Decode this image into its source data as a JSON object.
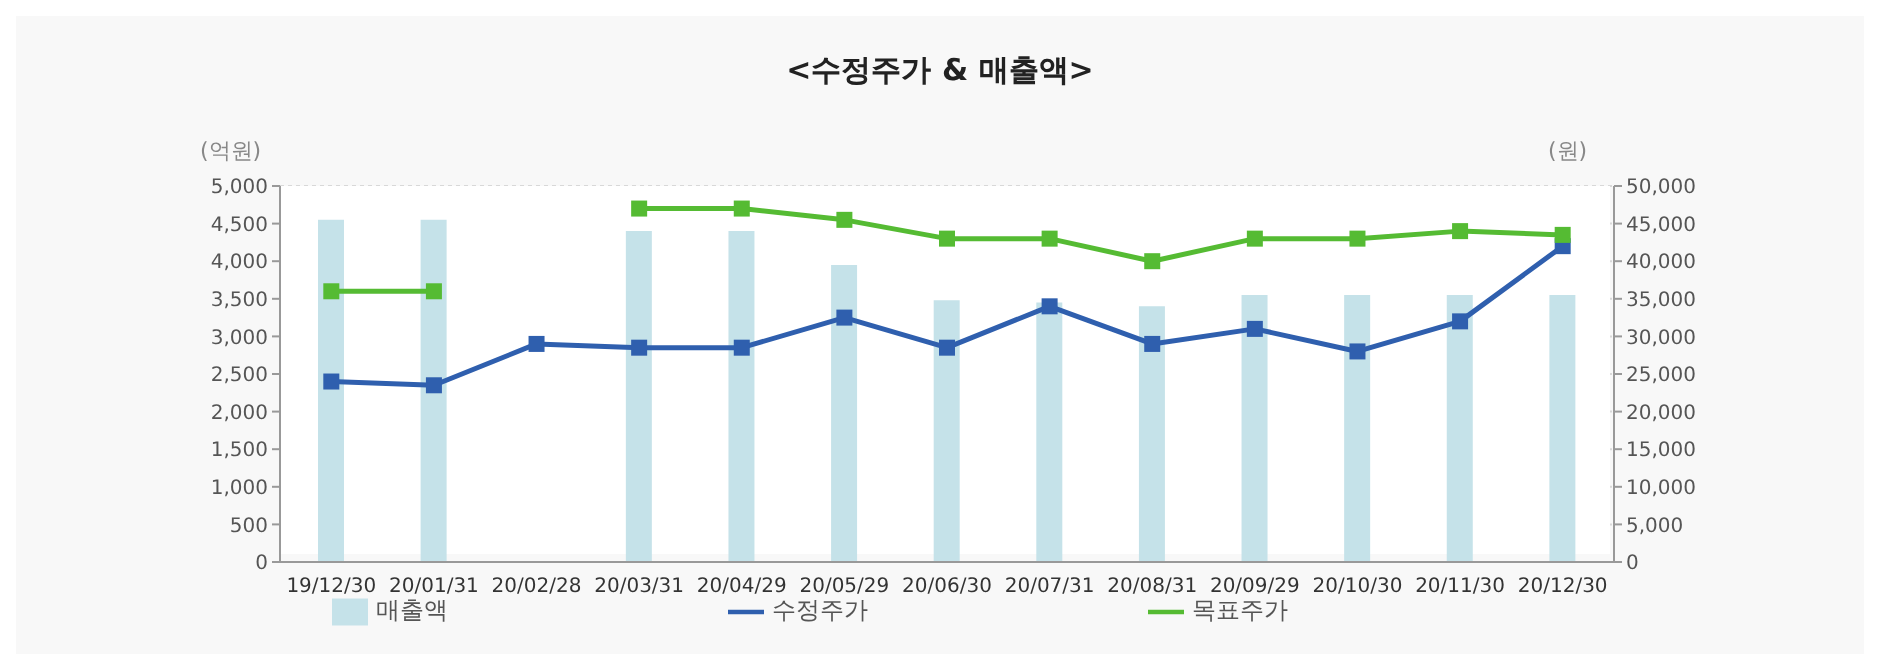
{
  "chart_data": {
    "type": "bar",
    "title": "<수정주가 & 매출액>",
    "ylabel": "(억원)",
    "y2label": "(원)",
    "categories": [
      "19/12/30",
      "20/01/31",
      "20/02/28",
      "20/03/31",
      "20/04/29",
      "20/05/29",
      "20/06/30",
      "20/07/31",
      "20/08/31",
      "20/09/29",
      "20/10/30",
      "20/11/30",
      "20/12/30"
    ],
    "series": [
      {
        "name": "매출액",
        "color": "#c5e2e9",
        "values": [
          4550,
          4550,
          null,
          4400,
          4400,
          3950,
          3480,
          3450,
          3400,
          3550,
          3550,
          3550,
          3550
        ]
      },
      {
        "name": "수정주가",
        "type": "line",
        "axis": "y2",
        "color": "#2f5fae",
        "marker": "square",
        "values": [
          24000,
          23500,
          29000,
          28500,
          28500,
          32500,
          28500,
          34000,
          29000,
          31000,
          28000,
          32000,
          42000
        ]
      },
      {
        "name": "목표주가",
        "type": "line",
        "axis": "y2",
        "color": "#55bb33",
        "marker": "square",
        "values": [
          36000,
          36000,
          null,
          47000,
          47000,
          45500,
          43000,
          43000,
          40000,
          43000,
          43000,
          44000,
          43500
        ]
      }
    ],
    "ylim": [
      0,
      5000
    ],
    "yticks": [
      0,
      500,
      {
        "value": 1000,
        "label": "1,000"
      },
      {
        "value": 1500,
        "label": "1,500"
      },
      {
        "value": 2000,
        "label": "2,000"
      },
      {
        "value": 2500,
        "label": "2,500"
      },
      {
        "value": 3000,
        "label": "3,000"
      },
      {
        "value": 3500,
        "label": "3,500"
      },
      {
        "value": 4000,
        "label": "4,000"
      },
      {
        "value": 4500,
        "label": "4,500"
      },
      {
        "value": 5000,
        "label": "5,000"
      }
    ],
    "y2lim": [
      0,
      50000
    ],
    "y2ticks": [
      0,
      {
        "value": 5000,
        "label": "5,000"
      },
      {
        "value": 10000,
        "label": "10,000"
      },
      {
        "value": 15000,
        "label": "15,000"
      },
      {
        "value": 20000,
        "label": "20,000"
      },
      {
        "value": 25000,
        "label": "25,000"
      },
      {
        "value": 30000,
        "label": "30,000"
      },
      {
        "value": 35000,
        "label": "35,000"
      },
      {
        "value": 40000,
        "label": "40,000"
      },
      {
        "value": 45000,
        "label": "45,000"
      },
      {
        "value": 50000,
        "label": "50,000"
      }
    ],
    "grid": "y",
    "legend": "bottom"
  }
}
